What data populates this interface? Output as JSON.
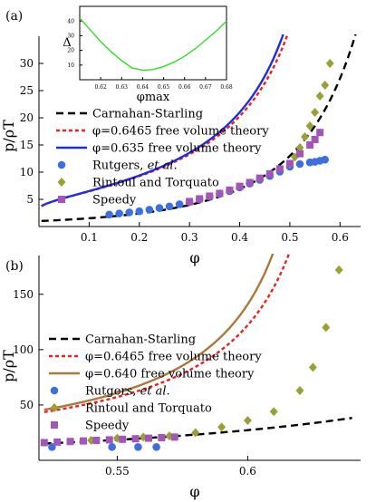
{
  "colors": {
    "carnahan": "#000000",
    "fv6465": "#e8221e",
    "fv635": "#1f2de0",
    "fv640": "#a8793a",
    "rutgers": "#3d6fe0",
    "rintoul": "#9aa036",
    "speedy": "#a455b8",
    "inset_curve": "#33dd22"
  },
  "chart_data": [
    {
      "panel": "(a)",
      "type": "line",
      "xlabel": "φ",
      "ylabel": "p/ρT",
      "xlim": [
        0.0,
        0.65
      ],
      "ylim": [
        0,
        35
      ],
      "xticks": [
        0.1,
        0.2,
        0.3,
        0.4,
        0.5,
        0.6
      ],
      "xtick_labels": [
        "0.1",
        "0.2",
        "0.3",
        "0.4",
        "0.5",
        "0.6"
      ],
      "yticks": [
        5,
        10,
        15,
        20,
        25,
        30
      ],
      "ytick_labels": [
        "5",
        "10",
        "15",
        "20",
        "25",
        "30"
      ],
      "legend_position": "left",
      "series": [
        {
          "name": "Carnahan-Starling",
          "kind": "line",
          "color_key": "carnahan",
          "dash": "8,5",
          "model": "cs",
          "phi_max": null,
          "x_range": [
            0.005,
            0.64
          ]
        },
        {
          "name": "φ=0.6465 free volume theory",
          "kind": "line",
          "color_key": "fv6465",
          "dash": "4,3",
          "model": "fv",
          "phi_max": 0.6465,
          "x_range": [
            0.005,
            0.585
          ]
        },
        {
          "name": "φ=0.635 free volume theory",
          "kind": "line",
          "color_key": "fv635",
          "dash": "",
          "model": "fv",
          "phi_max": 0.635,
          "x_range": [
            0.005,
            0.575
          ]
        },
        {
          "name": "Rutgers, et al.",
          "kind": "scatter",
          "marker": "circle",
          "color_key": "rutgers",
          "points": [
            [
              0.14,
              2.2
            ],
            [
              0.16,
              2.4
            ],
            [
              0.18,
              2.6
            ],
            [
              0.2,
              2.8
            ],
            [
              0.22,
              3.1
            ],
            [
              0.24,
              3.4
            ],
            [
              0.26,
              3.7
            ],
            [
              0.28,
              4.1
            ],
            [
              0.3,
              4.5
            ],
            [
              0.32,
              5.0
            ],
            [
              0.34,
              5.5
            ],
            [
              0.36,
              6.0
            ],
            [
              0.38,
              6.5
            ],
            [
              0.4,
              7.2
            ],
            [
              0.42,
              7.9
            ],
            [
              0.44,
              8.6
            ],
            [
              0.46,
              9.3
            ],
            [
              0.48,
              10.1
            ],
            [
              0.5,
              11.0
            ],
            [
              0.52,
              11.5
            ],
            [
              0.54,
              11.8
            ],
            [
              0.55,
              11.9
            ],
            [
              0.56,
              12.1
            ],
            [
              0.57,
              12.3
            ]
          ]
        },
        {
          "name": "Rintoul and Torquato",
          "kind": "scatter",
          "marker": "diamond",
          "color_key": "rintoul",
          "points": [
            [
              0.5,
              11.5
            ],
            [
              0.51,
              12.8
            ],
            [
              0.52,
              14.5
            ],
            [
              0.53,
              16.5
            ],
            [
              0.54,
              18.5
            ],
            [
              0.55,
              21.0
            ],
            [
              0.56,
              24.0
            ],
            [
              0.57,
              26.0
            ],
            [
              0.58,
              30.0
            ]
          ]
        },
        {
          "name": "Speedy",
          "kind": "scatter",
          "marker": "square",
          "color_key": "speedy",
          "points": [
            [
              0.3,
              4.6
            ],
            [
              0.32,
              5.1
            ],
            [
              0.34,
              5.6
            ],
            [
              0.36,
              6.1
            ],
            [
              0.38,
              6.7
            ],
            [
              0.4,
              7.4
            ],
            [
              0.42,
              8.1
            ],
            [
              0.44,
              8.9
            ],
            [
              0.46,
              9.7
            ],
            [
              0.48,
              10.6
            ],
            [
              0.5,
              11.6
            ],
            [
              0.52,
              13.4
            ],
            [
              0.54,
              15.0
            ],
            [
              0.55,
              16.0
            ],
            [
              0.56,
              17.3
            ]
          ]
        }
      ]
    },
    {
      "panel": "inset",
      "type": "line",
      "xlabel": "φmax",
      "ylabel": "Δ",
      "xlim": [
        0.61,
        0.68
      ],
      "ylim": [
        0,
        50
      ],
      "xticks": [
        0.62,
        0.63,
        0.64,
        0.65,
        0.66,
        0.67,
        0.68
      ],
      "xtick_labels": [
        "0.62",
        "0.63",
        "0.64",
        "0.65",
        "0.66",
        "0.67",
        "0.68"
      ],
      "yticks": [
        10,
        20,
        30,
        40
      ],
      "ytick_labels": [
        "10",
        "20",
        "30",
        "40"
      ],
      "series": [
        {
          "name": "",
          "kind": "line",
          "color_key": "inset_curve",
          "points": [
            [
              0.61,
              42
            ],
            [
              0.615,
              34
            ],
            [
              0.62,
              26
            ],
            [
              0.625,
              19
            ],
            [
              0.63,
              13
            ],
            [
              0.635,
              8
            ],
            [
              0.64,
              6.5
            ],
            [
              0.645,
              7
            ],
            [
              0.65,
              9
            ],
            [
              0.655,
              12
            ],
            [
              0.66,
              16
            ],
            [
              0.665,
              21
            ],
            [
              0.67,
              27
            ],
            [
              0.675,
              33
            ],
            [
              0.68,
              40
            ]
          ]
        }
      ]
    },
    {
      "panel": "(b)",
      "type": "line",
      "xlabel": "φ",
      "ylabel": "p/ρT",
      "xlim": [
        0.52,
        0.645
      ],
      "ylim": [
        0,
        185
      ],
      "xticks": [
        0.55,
        0.6
      ],
      "xtick_labels": [
        "0.55",
        "0.6"
      ],
      "yticks": [
        50,
        100,
        150
      ],
      "ytick_labels": [
        "50",
        "100",
        "150"
      ],
      "legend_position": "left",
      "series": [
        {
          "name": "Carnahan-Starling",
          "kind": "line",
          "color_key": "carnahan",
          "dash": "8,5",
          "model": "cs",
          "phi_max": null,
          "x_range": [
            0.522,
            0.64
          ]
        },
        {
          "name": "φ=0.6465 free volume theory",
          "kind": "line",
          "color_key": "fv6465",
          "dash": "4,3",
          "model": "fv",
          "phi_max": 0.6465,
          "x_range": [
            0.522,
            0.631
          ]
        },
        {
          "name": "φ=0.640 free volume theory",
          "kind": "line",
          "color_key": "fv640",
          "dash": "",
          "model": "fv",
          "phi_max": 0.64,
          "x_range": [
            0.522,
            0.6255
          ]
        },
        {
          "name": "Rutgers, et al.",
          "kind": "scatter",
          "marker": "circle",
          "color_key": "rutgers",
          "points": [
            [
              0.525,
              12
            ],
            [
              0.548,
              12
            ],
            [
              0.558,
              12
            ],
            [
              0.565,
              12
            ]
          ]
        },
        {
          "name": "Rintoul and Torquato",
          "kind": "scatter",
          "marker": "diamond",
          "color_key": "rintoul",
          "points": [
            [
              0.54,
              18
            ],
            [
              0.55,
              20
            ],
            [
              0.56,
              21
            ],
            [
              0.57,
              22
            ],
            [
              0.58,
              25
            ],
            [
              0.59,
              30
            ],
            [
              0.6,
              36
            ],
            [
              0.61,
              44
            ],
            [
              0.62,
              63
            ],
            [
              0.625,
              84
            ],
            [
              0.63,
              120
            ],
            [
              0.635,
              172
            ]
          ]
        },
        {
          "name": "Speedy",
          "kind": "scatter",
          "marker": "square",
          "color_key": "speedy",
          "points": [
            [
              0.522,
              16
            ],
            [
              0.527,
              16.5
            ],
            [
              0.532,
              17
            ],
            [
              0.537,
              17.5
            ],
            [
              0.542,
              18
            ],
            [
              0.547,
              18.5
            ],
            [
              0.552,
              19
            ],
            [
              0.557,
              19.5
            ],
            [
              0.562,
              20
            ],
            [
              0.567,
              20.5
            ],
            [
              0.572,
              21
            ]
          ]
        }
      ]
    }
  ]
}
